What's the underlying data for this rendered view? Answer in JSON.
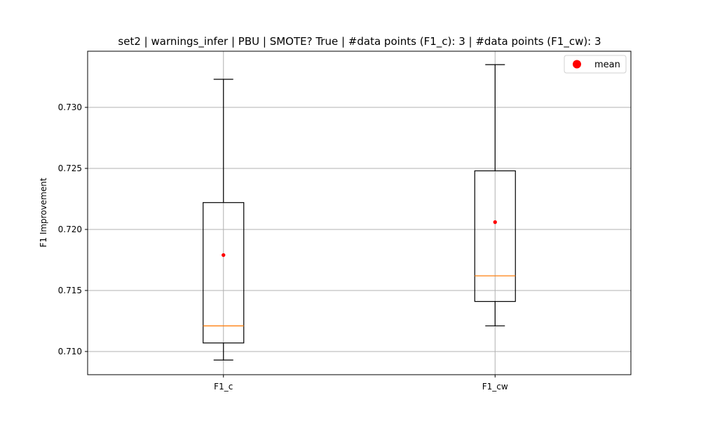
{
  "chart_data": {
    "type": "box",
    "title": "set2 | warnings_infer | PBU | SMOTE? True | #data points (F1_c): 3 | #data points (F1_cw): 3",
    "xlabel": "",
    "ylabel": "F1 Improvement",
    "categories": [
      "F1_c",
      "F1_cw"
    ],
    "boxes": [
      {
        "name": "F1_c",
        "whisker_low": 0.7093,
        "q1": 0.7107,
        "median": 0.7121,
        "q3": 0.7222,
        "whisker_high": 0.7323,
        "mean": 0.7179
      },
      {
        "name": "F1_cw",
        "whisker_low": 0.7121,
        "q1": 0.7141,
        "median": 0.7162,
        "q3": 0.7248,
        "whisker_high": 0.7335,
        "mean": 0.7206
      }
    ],
    "yticks": [
      "0.710",
      "0.715",
      "0.720",
      "0.725",
      "0.730"
    ],
    "ytick_values": [
      0.71,
      0.715,
      0.72,
      0.725,
      0.73
    ],
    "ylim": [
      0.7081,
      0.7346
    ],
    "grid": true,
    "legend": {
      "entries": [
        "mean"
      ],
      "placement": "upper right"
    },
    "colors": {
      "box": "#000000",
      "median": "#ff7f0e",
      "mean": "#ff0000",
      "grid": "#b0b0b0"
    }
  }
}
